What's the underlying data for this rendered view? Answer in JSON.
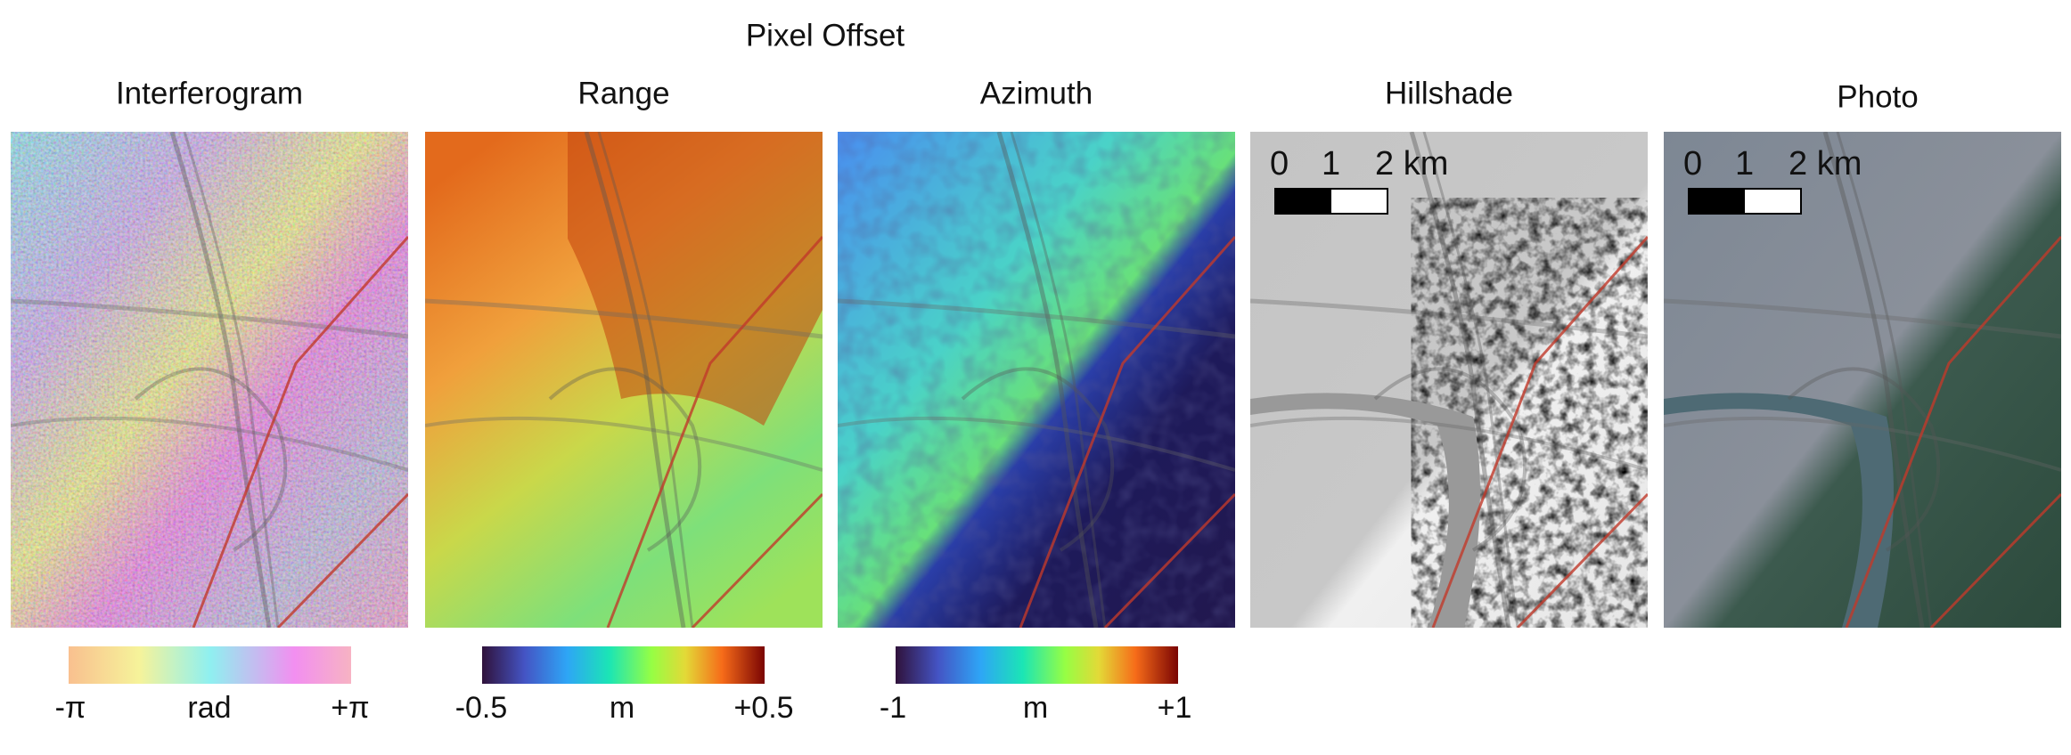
{
  "figure": {
    "title": "Pixel Offset",
    "panels": [
      {
        "title": "Interferogram"
      },
      {
        "title": "Range"
      },
      {
        "title": "Azimuth"
      },
      {
        "title": "Hillshade"
      },
      {
        "title": "Photo"
      }
    ],
    "colorbars": [
      {
        "min": "-π",
        "unit": "rad",
        "max": "+π"
      },
      {
        "min": "-0.5",
        "unit": "m",
        "max": "+0.5"
      },
      {
        "min": "-1",
        "unit": "m",
        "max": "+1"
      }
    ],
    "scale_bars": [
      {
        "labels": [
          "0",
          "1",
          "2 km"
        ]
      },
      {
        "labels": [
          "0",
          "1",
          "2 km"
        ]
      }
    ]
  }
}
